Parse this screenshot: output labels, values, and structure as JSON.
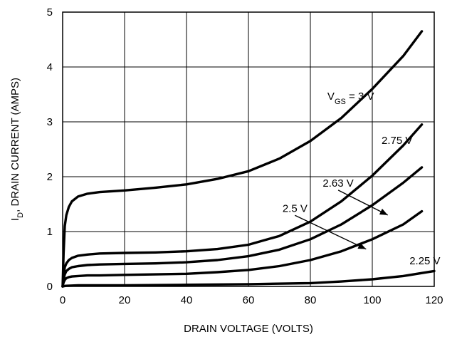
{
  "chart_data": {
    "type": "line",
    "xlabel": "DRAIN VOLTAGE (VOLTS)",
    "ylabel": {
      "main": "I",
      "sub": "D",
      "rest": ", DRAIN CURRENT (AMPS)"
    },
    "xlim": [
      0,
      120
    ],
    "ylim": [
      0,
      5
    ],
    "xticks": [
      0,
      20,
      40,
      60,
      80,
      100,
      120
    ],
    "yticks": [
      0,
      1,
      2,
      3,
      4,
      5
    ],
    "grid": true,
    "series": [
      {
        "name": "VGS = 3 V",
        "label": {
          "v": "V",
          "sub": "GS",
          "rest": " = 3 V"
        },
        "x": [
          0,
          0.3,
          0.7,
          1.2,
          2,
          3,
          5,
          8,
          12,
          20,
          30,
          40,
          50,
          60,
          70,
          80,
          90,
          100,
          110,
          116
        ],
        "y": [
          0,
          0.6,
          1.1,
          1.3,
          1.45,
          1.55,
          1.64,
          1.69,
          1.72,
          1.75,
          1.8,
          1.86,
          1.96,
          2.1,
          2.33,
          2.65,
          3.07,
          3.6,
          4.2,
          4.65
        ]
      },
      {
        "name": "2.75 V",
        "label": {
          "v": "2.75 V",
          "sub": "",
          "rest": ""
        },
        "x": [
          0,
          0.3,
          0.7,
          1.2,
          2,
          3,
          5,
          8,
          12,
          20,
          30,
          40,
          50,
          60,
          70,
          80,
          90,
          100,
          110,
          116
        ],
        "y": [
          0,
          0.2,
          0.35,
          0.42,
          0.48,
          0.52,
          0.56,
          0.58,
          0.6,
          0.61,
          0.62,
          0.64,
          0.68,
          0.76,
          0.92,
          1.18,
          1.55,
          2.02,
          2.57,
          2.95
        ]
      },
      {
        "name": "2.63 V",
        "label": {
          "v": "2.63 V",
          "sub": "",
          "rest": ""
        },
        "x": [
          0,
          0.3,
          0.7,
          1.2,
          2,
          3,
          5,
          8,
          12,
          20,
          30,
          40,
          50,
          60,
          70,
          80,
          90,
          100,
          110,
          116
        ],
        "y": [
          0,
          0.13,
          0.22,
          0.28,
          0.32,
          0.35,
          0.37,
          0.39,
          0.4,
          0.41,
          0.42,
          0.44,
          0.48,
          0.55,
          0.67,
          0.86,
          1.13,
          1.48,
          1.89,
          2.17
        ]
      },
      {
        "name": "2.5 V",
        "label": {
          "v": "2.5 V",
          "sub": "",
          "rest": ""
        },
        "x": [
          0,
          0.3,
          0.7,
          1.2,
          2,
          3,
          5,
          8,
          12,
          20,
          30,
          40,
          50,
          60,
          70,
          80,
          90,
          100,
          110,
          116
        ],
        "y": [
          0,
          0.07,
          0.12,
          0.15,
          0.17,
          0.18,
          0.19,
          0.2,
          0.2,
          0.21,
          0.22,
          0.23,
          0.26,
          0.3,
          0.37,
          0.48,
          0.64,
          0.86,
          1.13,
          1.37
        ]
      },
      {
        "name": "2.25 V",
        "label": {
          "v": "2.25 V",
          "sub": "",
          "rest": ""
        },
        "x": [
          0,
          1,
          5,
          10,
          20,
          40,
          60,
          80,
          90,
          100,
          110,
          120
        ],
        "y": [
          0,
          0.01,
          0.02,
          0.02,
          0.02,
          0.03,
          0.04,
          0.06,
          0.09,
          0.13,
          0.19,
          0.28
        ]
      }
    ],
    "annotations": [
      {
        "series": "VGS = 3 V",
        "text_at": [
          85.5,
          3.4
        ]
      },
      {
        "series": "2.75 V",
        "text_at": [
          103,
          2.6
        ]
      },
      {
        "series": "2.63 V",
        "text_at": [
          84,
          1.82
        ],
        "arrow_to": [
          105,
          1.3
        ]
      },
      {
        "series": "2.5 V",
        "text_at": [
          71,
          1.36
        ],
        "arrow_to": [
          98,
          0.68
        ]
      },
      {
        "series": "2.25 V",
        "text_at": [
          112,
          0.4
        ]
      }
    ]
  }
}
